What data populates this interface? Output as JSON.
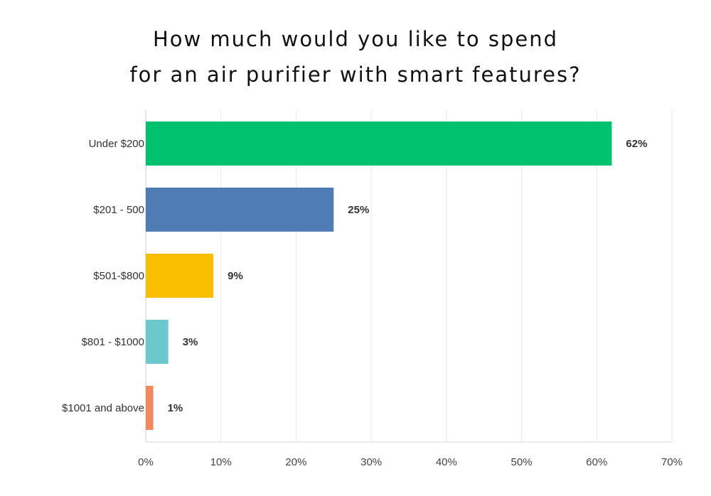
{
  "chart_data": {
    "type": "bar",
    "orientation": "horizontal",
    "title_lines": [
      "How much would you like to spend",
      "for an air purifier with smart features?"
    ],
    "categories": [
      "Under $200",
      "$201 - 500",
      "$501-$800",
      "$801 - $1000",
      "$1001 and above"
    ],
    "values": [
      62,
      25,
      9,
      3,
      1
    ],
    "value_labels": [
      "62%",
      "25%",
      "9%",
      "3%",
      "1%"
    ],
    "colors": [
      "#00c16e",
      "#507cb6",
      "#f9be00",
      "#6bc8cd",
      "#f08a5d"
    ],
    "xlim": [
      0,
      70
    ],
    "xticks": [
      0,
      10,
      20,
      30,
      40,
      50,
      60,
      70
    ],
    "xtick_labels": [
      "0%",
      "10%",
      "20%",
      "30%",
      "40%",
      "50%",
      "60%",
      "70%"
    ],
    "grid": "vertical",
    "legend": "none"
  }
}
